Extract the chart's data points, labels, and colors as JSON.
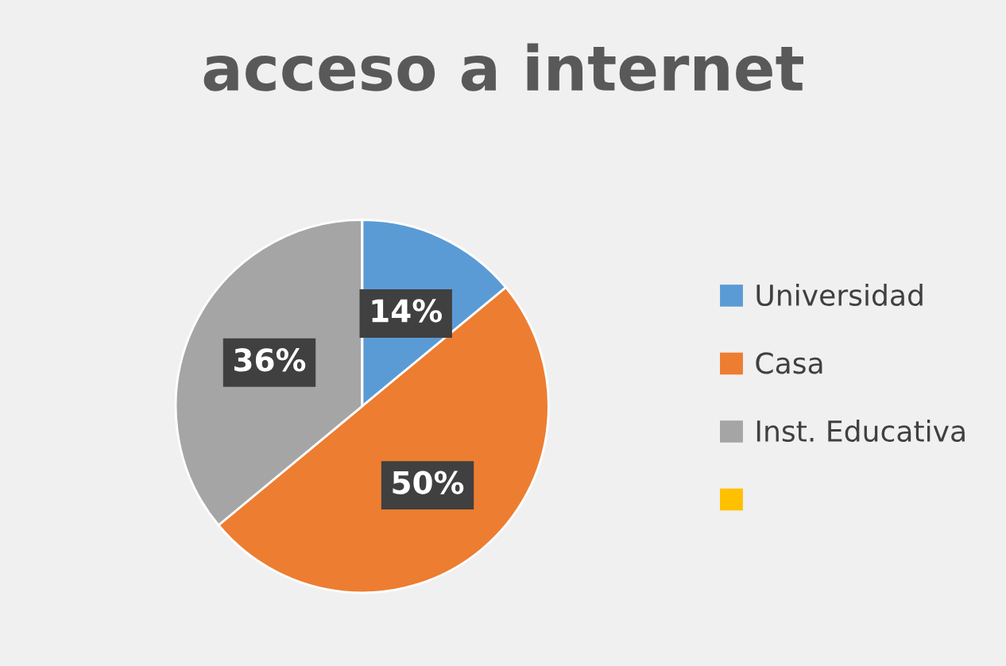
{
  "chart_data": {
    "type": "pie",
    "title": "acceso a internet",
    "categories": [
      "Universidad",
      "Casa",
      "Inst. Educativa",
      null
    ],
    "values": [
      14,
      50,
      36,
      0
    ],
    "colors": [
      "#5b9bd5",
      "#ed7d31",
      "#a5a5a5",
      "#ffc000"
    ],
    "value_labels": [
      "14%",
      "50%",
      "36%",
      null
    ],
    "legend": "right"
  }
}
